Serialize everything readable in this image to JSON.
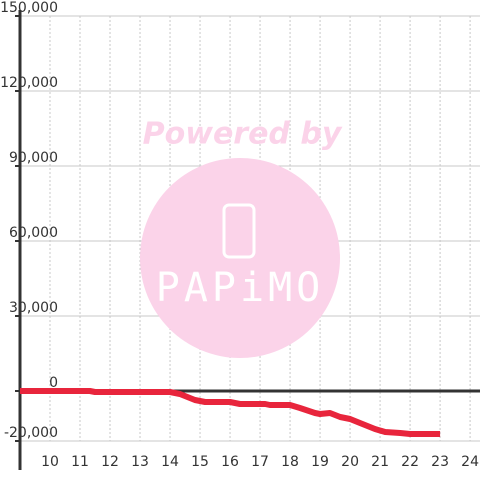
{
  "chart_data": {
    "type": "line",
    "x": [
      9,
      11.33,
      11.5,
      14,
      14.33,
      14.83,
      15.17,
      16,
      16.33,
      17.17,
      17.33,
      18,
      18.33,
      18.83,
      19,
      19.33,
      19.67,
      20,
      20.33,
      20.83,
      21.17,
      21.67,
      22,
      23
    ],
    "series": [
      {
        "color": "#e8253c",
        "values": [
          0,
          0,
          -400,
          -400,
          -1200,
          -3600,
          -4400,
          -4400,
          -5200,
          -5200,
          -5600,
          -5600,
          -6800,
          -8800,
          -9200,
          -8800,
          -10400,
          -11200,
          -12800,
          -15200,
          -16400,
          -16800,
          -17200,
          -17200
        ]
      }
    ],
    "xlim": [
      9,
      24.33
    ],
    "xticks": [
      10,
      11,
      12,
      13,
      14,
      15,
      16,
      17,
      18,
      19,
      20,
      21,
      22,
      23,
      24
    ],
    "ylim": [
      -20000,
      150000
    ],
    "yticks": [
      {
        "value": -20000,
        "label": "-20,000"
      },
      0,
      {
        "value": 30000,
        "label": "30,000"
      },
      {
        "value": 60000,
        "label": "60,000"
      },
      {
        "value": 90000,
        "label": "90,000"
      },
      {
        "value": 120000,
        "label": "120,000"
      },
      {
        "value": 150000,
        "label": "150,000"
      }
    ],
    "grid": true
  },
  "watermark": {
    "text": "Powered by",
    "logo": "PAPiMO"
  }
}
